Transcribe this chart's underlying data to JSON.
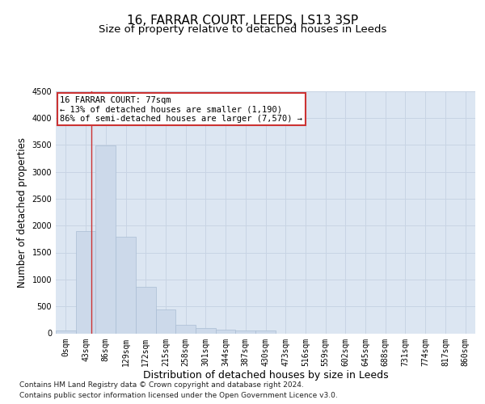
{
  "title": "16, FARRAR COURT, LEEDS, LS13 3SP",
  "subtitle": "Size of property relative to detached houses in Leeds",
  "xlabel": "Distribution of detached houses by size in Leeds",
  "ylabel": "Number of detached properties",
  "footnote1": "Contains HM Land Registry data © Crown copyright and database right 2024.",
  "footnote2": "Contains public sector information licensed under the Open Government Licence v3.0.",
  "annotation_title": "16 FARRAR COURT: 77sqm",
  "annotation_line1": "← 13% of detached houses are smaller (1,190)",
  "annotation_line2": "86% of semi-detached houses are larger (7,570) →",
  "bar_color": "#ccd9ea",
  "bar_edge_color": "#aabdd4",
  "grid_color": "#c8d4e4",
  "bg_color": "#dce6f2",
  "vline_color": "#cc3333",
  "vline_x": 1.8,
  "annotation_box_facecolor": "#ffffff",
  "annotation_border_color": "#cc3333",
  "ylim": [
    0,
    4500
  ],
  "yticks": [
    0,
    500,
    1000,
    1500,
    2000,
    2500,
    3000,
    3500,
    4000,
    4500
  ],
  "categories": [
    "0sqm",
    "43sqm",
    "86sqm",
    "129sqm",
    "172sqm",
    "215sqm",
    "258sqm",
    "301sqm",
    "344sqm",
    "387sqm",
    "430sqm",
    "473sqm",
    "516sqm",
    "559sqm",
    "602sqm",
    "645sqm",
    "688sqm",
    "731sqm",
    "774sqm",
    "817sqm",
    "860sqm"
  ],
  "values": [
    50,
    1900,
    3490,
    1800,
    860,
    450,
    160,
    100,
    75,
    60,
    55,
    0,
    0,
    0,
    0,
    0,
    0,
    0,
    0,
    0,
    0
  ],
  "title_fontsize": 11,
  "subtitle_fontsize": 9.5,
  "ylabel_fontsize": 8.5,
  "xlabel_fontsize": 9,
  "tick_fontsize": 7,
  "annotation_fontsize": 7.5,
  "footnote_fontsize": 6.5
}
